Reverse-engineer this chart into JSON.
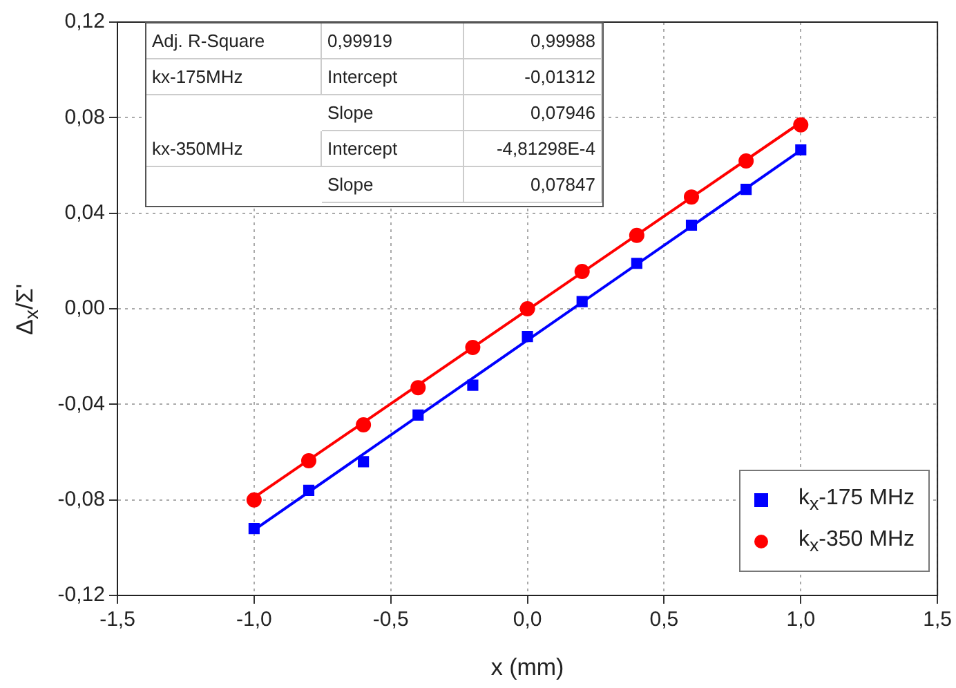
{
  "chart_data": {
    "type": "scatter",
    "xlabel": "x (mm)",
    "ylabel": "Δ$_{x}$/Σ'",
    "xlim": [
      -1.5,
      1.5
    ],
    "ylim": [
      -0.12,
      0.12
    ],
    "xticks": [
      {
        "value": -1.5,
        "label": "-1,5"
      },
      {
        "value": -1,
        "label": "-1,0"
      },
      {
        "value": -0.5,
        "label": "-0,5"
      },
      {
        "value": 0,
        "label": "0,0"
      },
      {
        "value": 0.5,
        "label": "0,5"
      },
      {
        "value": 1,
        "label": "1,0"
      },
      {
        "value": 1.5,
        "label": "1,5"
      }
    ],
    "yticks": [
      {
        "value": -0.12,
        "label": "-0,12"
      },
      {
        "value": -0.08,
        "label": "-0,08"
      },
      {
        "value": -0.04,
        "label": "-0,04"
      },
      {
        "value": 0,
        "label": "0,00"
      },
      {
        "value": 0.04,
        "label": "0,04"
      },
      {
        "value": 0.08,
        "label": "0,08"
      },
      {
        "value": 0.12,
        "label": "0,12"
      }
    ],
    "grid": true,
    "legend": "bottom right",
    "series": [
      {
        "type": "line",
        "color": "#0000ff",
        "marker": "none",
        "x": [
          -1,
          1
        ],
        "values": [
          -0.0926,
          0.0663
        ]
      },
      {
        "type": "line",
        "color": "#ff0000",
        "marker": "none",
        "x": [
          -1,
          1
        ],
        "values": [
          -0.079,
          0.078
        ]
      },
      {
        "name": "k$_{x}$-175 MHz",
        "color": "#0000ff",
        "marker": "square",
        "x": [
          -1,
          -0.8,
          -0.6,
          -0.4,
          -0.2,
          0,
          0.2,
          0.4,
          0.6,
          0.8,
          1
        ],
        "values": [
          -0.092,
          -0.076,
          -0.064,
          -0.0445,
          -0.032,
          -0.0116,
          0.003,
          0.019,
          0.035,
          0.05,
          0.0665
        ]
      },
      {
        "name": "k$_{x}$-350 MHz",
        "color": "#ff0000",
        "marker": "circle",
        "x": [
          -1,
          -0.8,
          -0.6,
          -0.4,
          -0.2,
          0,
          0.2,
          0.4,
          0.6,
          0.8,
          1
        ],
        "values": [
          -0.08,
          -0.0636,
          -0.0486,
          -0.033,
          -0.0162,
          0,
          0.0156,
          0.0307,
          0.0468,
          0.0619,
          0.077
        ]
      }
    ],
    "annotations": [
      "Adj. R-Square",
      "0,99919",
      "0,99988",
      "kx-175MHz",
      "Intercept",
      "-0,01312",
      "Slope",
      "0,07946",
      "kx-350MHz",
      "Intercept",
      "-4,81298E-4",
      "Slope",
      "0,07847"
    ]
  }
}
